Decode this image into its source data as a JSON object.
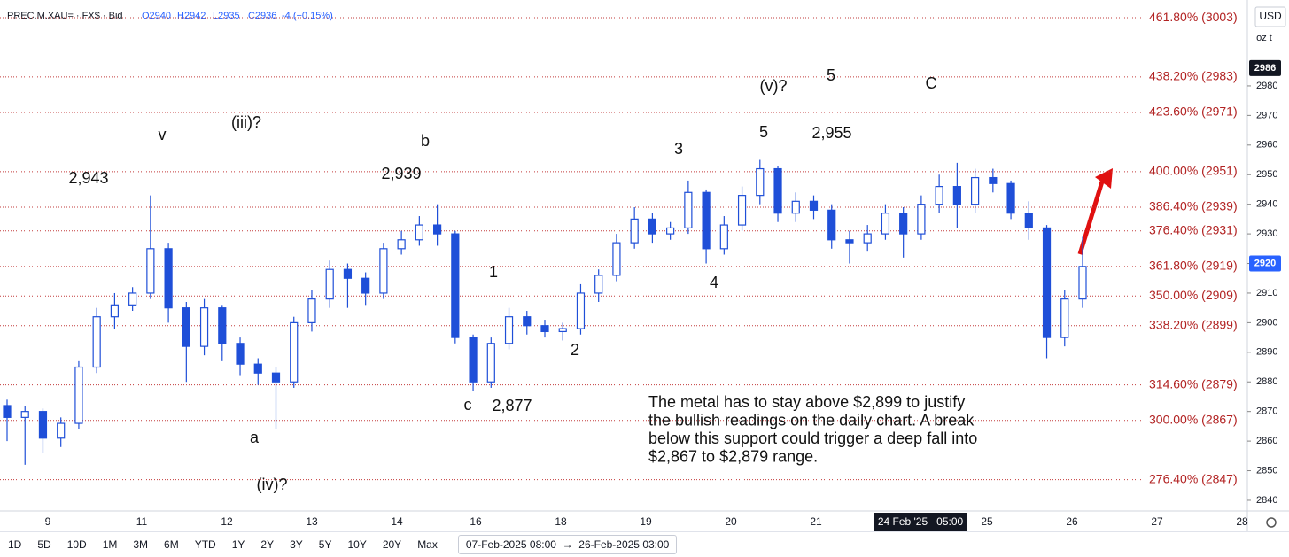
{
  "header": {
    "symbol": "PREC.M.XAU= · FX$ · Bid",
    "ohlc": [
      "O2940",
      "H2942",
      "L2935",
      "C2936",
      "-4 (−0.15%)"
    ],
    "currency": "USD",
    "unit": "oz t"
  },
  "chart_data": {
    "type": "candlestick",
    "color": "#1f4fd8",
    "candles": {
      "open": [
        2872,
        2868,
        2870,
        2861,
        2866,
        2885,
        2902,
        2906,
        2910,
        2925,
        2905,
        2892,
        2905,
        2893,
        2886,
        2883,
        2880,
        2900,
        2908,
        2918,
        2915,
        2910,
        2925,
        2928,
        2933,
        2930,
        2895,
        2880,
        2893,
        2902,
        2899,
        2897,
        2898,
        2910,
        2916,
        2927,
        2935,
        2930,
        2932,
        2944,
        2925,
        2933,
        2943,
        2952,
        2937,
        2941,
        2938,
        2928,
        2927,
        2930,
        2937,
        2930,
        2940,
        2946,
        2940,
        2949,
        2947,
        2937,
        2932,
        2895,
        2908
      ],
      "high": [
        2874,
        2872,
        2871,
        2868,
        2887,
        2905,
        2910,
        2912,
        2943,
        2927,
        2907,
        2908,
        2906,
        2895,
        2888,
        2885,
        2902,
        2911,
        2921,
        2920,
        2917,
        2927,
        2931,
        2936,
        2940,
        2931,
        2896,
        2895,
        2905,
        2904,
        2901,
        2900,
        2913,
        2918,
        2930,
        2939,
        2937,
        2934,
        2948,
        2945,
        2936,
        2946,
        2955,
        2953,
        2944,
        2943,
        2940,
        2931,
        2933,
        2940,
        2939,
        2943,
        2950,
        2954,
        2952,
        2952,
        2948,
        2941,
        2933,
        2911,
        2929
      ],
      "low": [
        2860,
        2852,
        2856,
        2858,
        2864,
        2883,
        2898,
        2904,
        2908,
        2900,
        2880,
        2889,
        2887,
        2882,
        2879,
        2864,
        2878,
        2897,
        2905,
        2905,
        2906,
        2908,
        2923,
        2926,
        2926,
        2893,
        2877,
        2878,
        2891,
        2896,
        2895,
        2894,
        2896,
        2907,
        2914,
        2925,
        2927,
        2928,
        2930,
        2920,
        2923,
        2931,
        2940,
        2934,
        2934,
        2935,
        2925,
        2920,
        2924,
        2928,
        2922,
        2928,
        2937,
        2932,
        2937,
        2944,
        2935,
        2928,
        2888,
        2892,
        2905
      ],
      "close": [
        2868,
        2870,
        2861,
        2866,
        2885,
        2902,
        2906,
        2910,
        2925,
        2905,
        2892,
        2905,
        2893,
        2886,
        2883,
        2880,
        2900,
        2908,
        2918,
        2915,
        2910,
        2925,
        2928,
        2933,
        2930,
        2895,
        2880,
        2893,
        2902,
        2899,
        2897,
        2898,
        2910,
        2916,
        2927,
        2935,
        2930,
        2932,
        2944,
        2925,
        2933,
        2943,
        2952,
        2937,
        2941,
        2938,
        2928,
        2927,
        2930,
        2937,
        2930,
        2940,
        2946,
        2940,
        2949,
        2947,
        2937,
        2932,
        2895,
        2908,
        2919
      ]
    },
    "x_labels": [
      "9",
      "11",
      "12",
      "13",
      "14",
      "16",
      "18",
      "19",
      "20",
      "21",
      "24 Feb '25   05:00",
      "25",
      "26",
      "27",
      "28"
    ],
    "ylim": [
      2836.4,
      3009
    ],
    "yticks": [
      2840,
      2850,
      2860,
      2870,
      2880,
      2890,
      2900,
      2910,
      2920,
      2930,
      2940,
      2950,
      2960,
      2970,
      2980
    ],
    "price_tags": [
      2986,
      2920
    ],
    "fib_levels": [
      {
        "value": 3003,
        "label": "461.80% (3003)"
      },
      {
        "value": 2983,
        "label": "438.20% (2983)"
      },
      {
        "value": 2971,
        "label": "423.60% (2971)"
      },
      {
        "value": 2951,
        "label": "400.00% (2951)"
      },
      {
        "value": 2939,
        "label": "386.40% (2939)"
      },
      {
        "value": 2931,
        "label": "376.40% (2931)"
      },
      {
        "value": 2919,
        "label": "361.80% (2919)"
      },
      {
        "value": 2909,
        "label": "350.00% (2909)"
      },
      {
        "value": 2899,
        "label": "338.20% (2899)"
      },
      {
        "value": 2879,
        "label": "314.60% (2879)"
      },
      {
        "value": 2867,
        "label": "300.00% (2867)"
      },
      {
        "value": 2847,
        "label": "276.40% (2847)"
      }
    ],
    "annotations": [
      "2,943",
      "v",
      "(iii)?",
      "b",
      "2,939",
      "1",
      "c",
      "2,877",
      "2",
      "3",
      "4",
      "5",
      "(v)?",
      "5",
      "2,955",
      "C",
      "a",
      "(iv)?"
    ],
    "note": [
      "The metal has to stay above $2,899 to justify",
      "the bullish readings on the daily chart. A break",
      "below this support could trigger a deep fall into",
      "$2,867 to $2,879 range."
    ]
  },
  "toolbar": {
    "ranges": [
      "1D",
      "5D",
      "10D",
      "1M",
      "3M",
      "6M",
      "YTD",
      "1Y",
      "2Y",
      "3Y",
      "5Y",
      "10Y",
      "20Y",
      "Max"
    ],
    "date_range": "07-Feb-2025 08:00  →  26-Feb-2025 03:00"
  }
}
